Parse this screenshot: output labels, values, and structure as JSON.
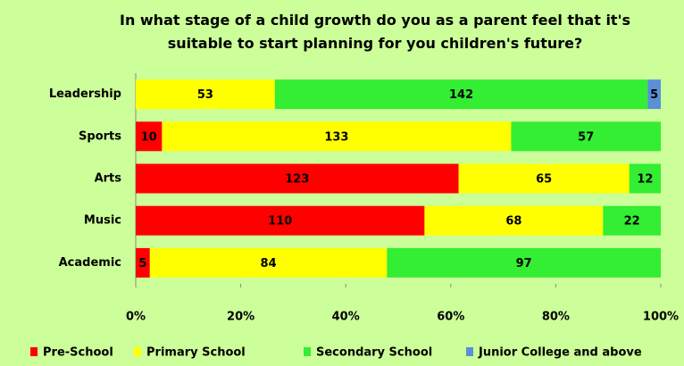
{
  "chart_data": {
    "type": "bar",
    "orientation": "horizontal",
    "stacking": "percent",
    "title": "In what stage of a child growth do you as a parent feel that it's suitable to start planning for you children's future?",
    "categories": [
      "Leadership",
      "Sports",
      "Arts",
      "Music",
      "Academic"
    ],
    "series": [
      {
        "name": "Pre-School",
        "color": "#ff0000",
        "values": [
          null,
          10,
          123,
          110,
          5
        ]
      },
      {
        "name": "Primary School",
        "color": "#ffff00",
        "values": [
          53,
          133,
          65,
          68,
          84
        ]
      },
      {
        "name": "Secondary School",
        "color": "#33ee33",
        "values": [
          142,
          57,
          12,
          22,
          97
        ]
      },
      {
        "name": "Junior College and above",
        "color": "#5b8fd6",
        "values": [
          5,
          null,
          null,
          null,
          null
        ]
      }
    ],
    "xlim": [
      0,
      100
    ],
    "xticks": [
      {
        "value": 0,
        "label": "0%"
      },
      {
        "value": 20,
        "label": "20%"
      },
      {
        "value": 40,
        "label": "40%"
      },
      {
        "value": 60,
        "label": "60%"
      },
      {
        "value": 80,
        "label": "80%"
      },
      {
        "value": 100,
        "label": "100%"
      }
    ],
    "grid": false,
    "legend": "bottom"
  }
}
